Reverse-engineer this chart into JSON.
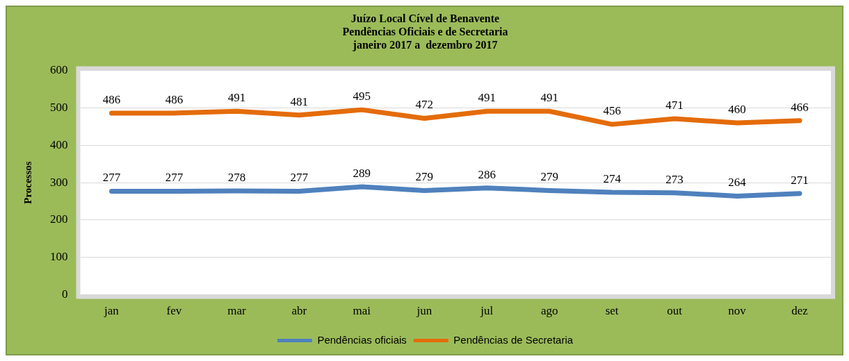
{
  "chart_data": {
    "type": "line",
    "title": "Juízo Local Cível de Benavente",
    "subtitle": "Pendências Oficiais e de Secretaria\njaneiro 2017 a  dezembro 2017",
    "ylabel": "Processos",
    "categories": [
      "jan",
      "fev",
      "mar",
      "abr",
      "mai",
      "jun",
      "jul",
      "ago",
      "set",
      "out",
      "nov",
      "dez"
    ],
    "series": [
      {
        "name": "Pendências oficiais",
        "color": "#4f81bd",
        "values": [
          277,
          277,
          278,
          277,
          289,
          279,
          286,
          279,
          274,
          273,
          264,
          271
        ]
      },
      {
        "name": "Pendências de Secretaria",
        "color": "#e46c0a",
        "values": [
          486,
          486,
          491,
          481,
          495,
          472,
          491,
          491,
          456,
          471,
          460,
          466
        ]
      }
    ],
    "ylim": [
      0,
      600
    ],
    "yticks": [
      0,
      100,
      200,
      300,
      400,
      500,
      600
    ],
    "grid": "y",
    "legend": "bottom",
    "marker": "none",
    "line_style": "solid",
    "data_labels": true
  }
}
